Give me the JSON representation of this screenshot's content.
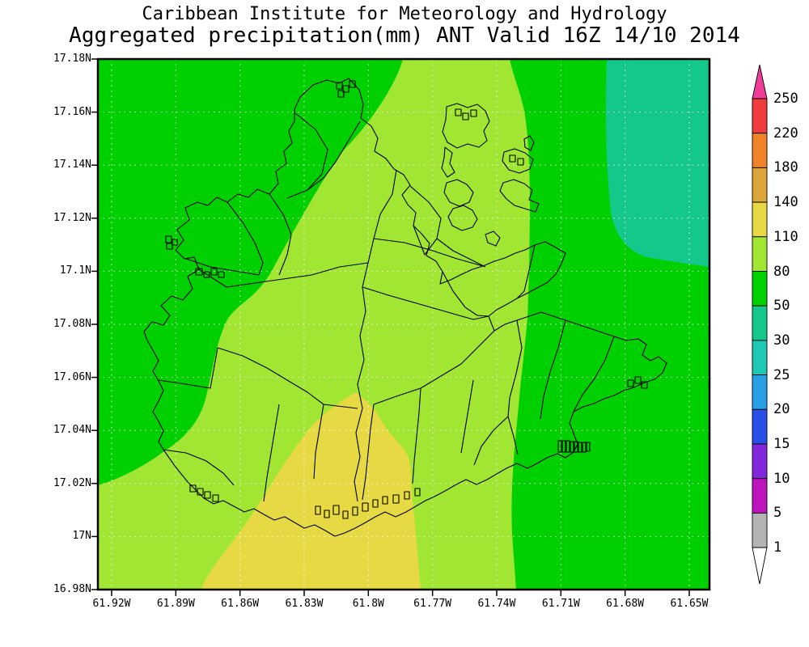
{
  "header": {
    "line1": "Caribbean Institute for Meteorology and Hydrology",
    "line2": "Aggregated precipitation(mm) ANT Valid 16Z 14/10 2014"
  },
  "colors": {
    "page_background": "#FFFFFF",
    "map_border": "#000000",
    "gridline": "#FFFFFF",
    "island_outline": "#000000",
    "rain_50_80": "#00D000",
    "rain_80_110": "#A0E632",
    "rain_110_140": "#E6D943",
    "rain_30_50": "#14C88C"
  },
  "map": {
    "x_ticks": [
      "61.92W",
      "61.89W",
      "61.86W",
      "61.83W",
      "61.8W",
      "61.77W",
      "61.74W",
      "61.71W",
      "61.68W",
      "61.65W"
    ],
    "y_ticks": [
      "17.18N",
      "17.16N",
      "17.14N",
      "17.12N",
      "17.1N",
      "17.08N",
      "17.06N",
      "17.04N",
      "17.02N",
      "17N",
      "16.98N"
    ]
  },
  "colorbar": {
    "labels": [
      "250",
      "220",
      "180",
      "140",
      "110",
      "80",
      "50",
      "30",
      "25",
      "20",
      "15",
      "10",
      "5",
      "1"
    ],
    "segment_colors": [
      "#F03C3C",
      "#F08228",
      "#DCA53C",
      "#E6D943",
      "#A0E632",
      "#00D000",
      "#14C88C",
      "#1EC8B4",
      "#28A0E6",
      "#2850E6",
      "#8228DC",
      "#BE14BE",
      "#B4B4B4"
    ],
    "top_arrow_color": "#F03C96",
    "bottom_arrow_color": "#FFFFFF"
  },
  "chart_data": {
    "type": "heatmap",
    "subtype": "filled-contour precipitation analysis over Antigua",
    "title": "Caribbean Institute for Meteorology and Hydrology",
    "subtitle": "Aggregated precipitation(mm) ANT Valid 16Z 14/10 2014",
    "region_code": "ANT",
    "valid_time": "16Z 14/10 2014",
    "units": "mm",
    "x_axis": {
      "ticks": [
        "61.92W",
        "61.89W",
        "61.86W",
        "61.83W",
        "61.8W",
        "61.77W",
        "61.74W",
        "61.71W",
        "61.68W",
        "61.65W"
      ],
      "approx_range": [
        "61.93W",
        "61.64W"
      ]
    },
    "y_axis": {
      "ticks": [
        "17.18N",
        "17.16N",
        "17.14N",
        "17.12N",
        "17.1N",
        "17.08N",
        "17.06N",
        "17.04N",
        "17.02N",
        "17N",
        "16.98N"
      ],
      "approx_range": [
        "16.98N",
        "17.18N"
      ]
    },
    "legend_levels_mm": [
      1,
      5,
      10,
      15,
      20,
      25,
      30,
      50,
      80,
      110,
      140,
      180,
      220,
      250
    ],
    "legend_position": "right vertical colorbar with open arrow above 250 and below 1",
    "grid": "white dashed lat/lon gridlines at every tick",
    "filled_regions": [
      {
        "value_range_mm": "50-80",
        "color": "#00D000",
        "where": "dominant background over most of the domain (west, north-center, east and south-east)"
      },
      {
        "value_range_mm": "80-110",
        "color": "#A0E632",
        "where": "broad band entering the top edge near 61.81-61.77W, widening south-westward across central Antigua to the south and the south-west corner"
      },
      {
        "value_range_mm": "110-140",
        "color": "#E6D943",
        "where": "lobe over the southern coast, bottom-center, peaking near 61.83W 17.02N and reaching the bottom edge between about 61.87W and 61.77W"
      },
      {
        "value_range_mm": "30-50",
        "color": "#14C88C",
        "where": "rounded area in the top-right (north-east) corner, from about 61.695W to beyond the right edge, down to about 17.10N"
      }
    ],
    "overlay": "black outline of Antigua with dense interior watershed/catchment polygon boundaries"
  }
}
